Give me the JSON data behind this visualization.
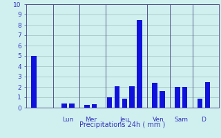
{
  "bars": [
    {
      "x": 1,
      "height": 5.0
    },
    {
      "x": 5,
      "height": 0.4
    },
    {
      "x": 6,
      "height": 0.4
    },
    {
      "x": 8,
      "height": 0.3
    },
    {
      "x": 9,
      "height": 0.35
    },
    {
      "x": 11,
      "height": 1.0
    },
    {
      "x": 12,
      "height": 2.1
    },
    {
      "x": 13,
      "height": 0.9
    },
    {
      "x": 14,
      "height": 2.1
    },
    {
      "x": 15,
      "height": 8.5
    },
    {
      "x": 17,
      "height": 2.4
    },
    {
      "x": 18,
      "height": 1.6
    },
    {
      "x": 20,
      "height": 2.0
    },
    {
      "x": 21,
      "height": 2.0
    },
    {
      "x": 23,
      "height": 0.9
    },
    {
      "x": 24,
      "height": 2.5
    }
  ],
  "bar_width": 0.7,
  "bar_color": "#1111dd",
  "background_color": "#d0f0f0",
  "grid_color": "#a0c0c0",
  "axis_label_color": "#3333bb",
  "tick_label_color": "#3333bb",
  "xlabel": "Précipitations 24h ( mm )",
  "ylim": [
    0,
    10
  ],
  "yticks": [
    0,
    1,
    2,
    3,
    4,
    5,
    6,
    7,
    8,
    9,
    10
  ],
  "xlim": [
    0,
    25.5
  ],
  "day_labels": [
    {
      "x": 5.5,
      "label": "Lun"
    },
    {
      "x": 8.5,
      "label": "Mer"
    },
    {
      "x": 13.0,
      "label": "Jeu"
    },
    {
      "x": 17.5,
      "label": "Ven"
    },
    {
      "x": 20.5,
      "label": "Sam"
    },
    {
      "x": 23.5,
      "label": "D"
    }
  ],
  "day_line_color": "#555588",
  "day_lines_x": [
    3.5,
    7.0,
    10.5,
    16.0,
    19.0,
    22.0
  ]
}
